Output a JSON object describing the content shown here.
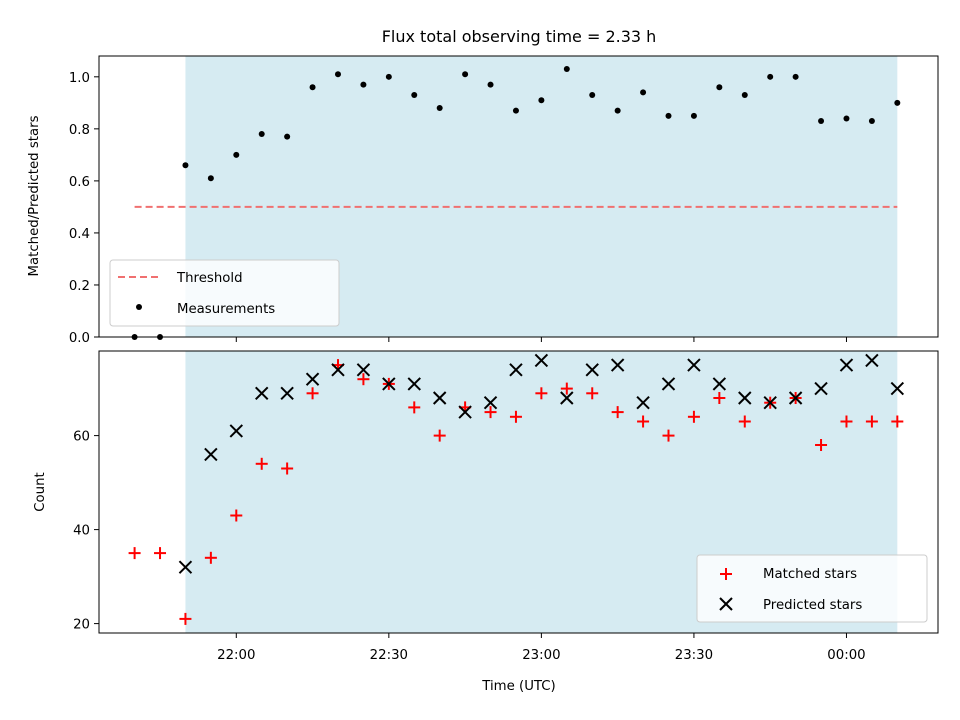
{
  "chart_data": [
    {
      "type": "scatter",
      "title": "Flux total observing time = 2.33 h",
      "xlabel": "",
      "ylabel": "Matched/Predicted stars",
      "ylim": [
        0,
        1.08
      ],
      "yticks": [
        "0.0",
        "0.2",
        "0.4",
        "0.6",
        "0.8",
        "1.0"
      ],
      "ytick_values": [
        0,
        0.2,
        0.4,
        0.6,
        0.8,
        1.0
      ],
      "shaded_interval": [
        "21:50",
        "00:10"
      ],
      "shade_color": "#add8e6",
      "legend_position": "lower-left",
      "threshold": {
        "name": "Threshold",
        "y": 0.5,
        "x_range": [
          "21:40",
          "00:10"
        ],
        "color": "#f07070"
      },
      "series": [
        {
          "name": "Measurements",
          "marker": "dot",
          "color": "#000000",
          "x": [
            "21:40",
            "21:45",
            "21:50",
            "21:55",
            "22:00",
            "22:05",
            "22:10",
            "22:15",
            "22:20",
            "22:25",
            "22:30",
            "22:35",
            "22:40",
            "22:45",
            "22:50",
            "22:55",
            "23:00",
            "23:05",
            "23:10",
            "23:15",
            "23:20",
            "23:25",
            "23:30",
            "23:35",
            "23:40",
            "23:45",
            "23:50",
            "23:55",
            "00:00",
            "00:05",
            "00:10"
          ],
          "y": [
            0.0,
            0.0,
            0.66,
            0.61,
            0.7,
            0.78,
            0.77,
            0.96,
            1.01,
            0.97,
            1.0,
            0.93,
            0.88,
            1.01,
            0.97,
            0.87,
            0.91,
            1.03,
            0.93,
            0.87,
            0.94,
            0.85,
            0.85,
            0.96,
            0.93,
            1.0,
            1.0,
            0.83,
            0.84,
            0.83,
            0.9
          ]
        }
      ]
    },
    {
      "type": "scatter",
      "title": "",
      "xlabel": "Time (UTC)",
      "ylabel": "Count",
      "ylim": [
        18,
        78
      ],
      "yticks": [
        "20",
        "40",
        "60"
      ],
      "ytick_values": [
        20,
        40,
        60
      ],
      "xticks": [
        "22:00",
        "22:30",
        "23:00",
        "23:30",
        "00:00"
      ],
      "xtick_values": [
        "22:00",
        "22:30",
        "23:00",
        "23:30",
        "00:00"
      ],
      "xlim": [
        "21:33",
        "00:18"
      ],
      "shaded_interval": [
        "21:50",
        "00:10"
      ],
      "shade_color": "#add8e6",
      "legend_position": "lower-right",
      "series": [
        {
          "name": "Matched stars",
          "marker": "plus",
          "color": "#ff0000",
          "x": [
            "21:40",
            "21:45",
            "21:50",
            "21:55",
            "22:00",
            "22:05",
            "22:10",
            "22:15",
            "22:20",
            "22:25",
            "22:30",
            "22:35",
            "22:40",
            "22:45",
            "22:50",
            "22:55",
            "23:00",
            "23:05",
            "23:10",
            "23:15",
            "23:20",
            "23:25",
            "23:30",
            "23:35",
            "23:40",
            "23:45",
            "23:50",
            "23:55",
            "00:00",
            "00:05",
            "00:10"
          ],
          "y": [
            35,
            35,
            21,
            34,
            43,
            54,
            53,
            69,
            75,
            72,
            71,
            66,
            60,
            66,
            65,
            64,
            69,
            70,
            69,
            65,
            63,
            60,
            64,
            68,
            63,
            67,
            68,
            58,
            63,
            63,
            63
          ]
        },
        {
          "name": "Predicted stars",
          "marker": "x",
          "color": "#000000",
          "x": [
            "21:50",
            "21:55",
            "22:00",
            "22:05",
            "22:10",
            "22:15",
            "22:20",
            "22:25",
            "22:30",
            "22:35",
            "22:40",
            "22:45",
            "22:50",
            "22:55",
            "23:00",
            "23:05",
            "23:10",
            "23:15",
            "23:20",
            "23:25",
            "23:30",
            "23:35",
            "23:40",
            "23:45",
            "23:50",
            "23:55",
            "00:00",
            "00:05",
            "00:10"
          ],
          "y": [
            32,
            56,
            61,
            69,
            69,
            72,
            74,
            74,
            71,
            71,
            68,
            65,
            67,
            74,
            76,
            68,
            74,
            75,
            67,
            71,
            75,
            71,
            68,
            67,
            68,
            70,
            75,
            76,
            70
          ]
        }
      ]
    }
  ]
}
